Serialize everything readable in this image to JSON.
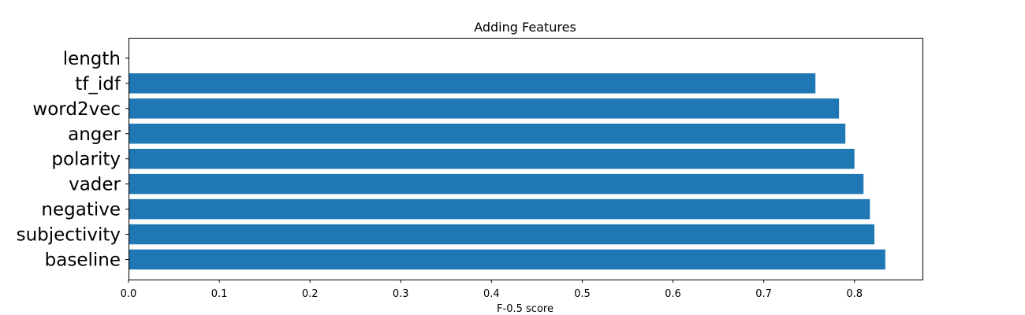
{
  "chart_data": {
    "type": "bar",
    "orientation": "horizontal",
    "title": "Adding Features",
    "xlabel": "F-0.5 score",
    "ylabel": "",
    "categories": [
      "baseline",
      "subjectivity",
      "negative",
      "vader",
      "polarity",
      "anger",
      "word2vec",
      "tf_idf",
      "length"
    ],
    "values": [
      0.834,
      0.822,
      0.817,
      0.81,
      0.8,
      0.79,
      0.783,
      0.757,
      0.0
    ],
    "xlim": [
      0,
      0.875
    ],
    "xticks": [
      0.0,
      0.1,
      0.2,
      0.3,
      0.4,
      0.5,
      0.6,
      0.7,
      0.8
    ],
    "xtick_labels": [
      "0.0",
      "0.1",
      "0.2",
      "0.3",
      "0.4",
      "0.5",
      "0.6",
      "0.7",
      "0.8"
    ],
    "bar_color": "#1f77b4",
    "grid": false
  }
}
